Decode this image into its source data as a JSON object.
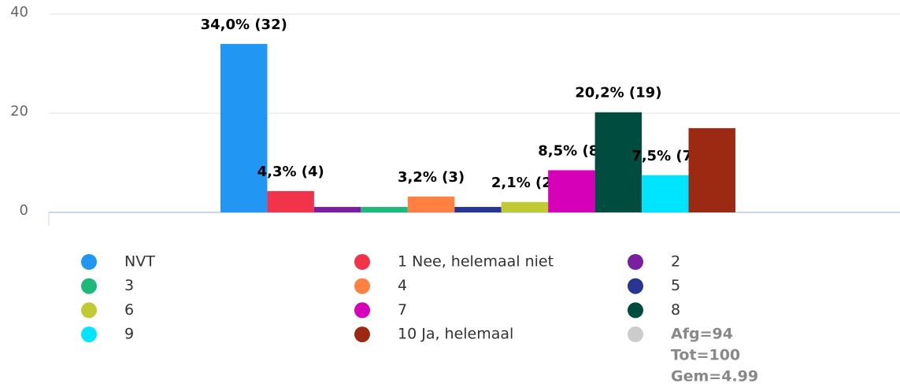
{
  "chart_data": {
    "type": "bar",
    "ylim": [
      0,
      40
    ],
    "yticks": [
      0,
      20,
      40
    ],
    "grid": true,
    "series": [
      {
        "name": "NVT",
        "color": "#2196f3",
        "values": [
          34.0
        ],
        "value_labels": [
          "34,0% (32)"
        ]
      },
      {
        "name": "1 Nee, helemaal niet",
        "color": "#f2344a",
        "values": [
          4.3
        ],
        "value_labels": [
          "4,3% (4)"
        ]
      },
      {
        "name": "2",
        "color": "#7b1fa2",
        "values": [
          1.1
        ],
        "value_labels": [
          null
        ]
      },
      {
        "name": "3",
        "color": "#1db87a",
        "values": [
          1.1
        ],
        "value_labels": [
          null
        ]
      },
      {
        "name": "4",
        "color": "#ff8040",
        "values": [
          3.2
        ],
        "value_labels": [
          "3,2% (3)"
        ]
      },
      {
        "name": "5",
        "color": "#283593",
        "values": [
          1.1
        ],
        "value_labels": [
          null
        ]
      },
      {
        "name": "6",
        "color": "#c0ca33",
        "values": [
          2.1
        ],
        "value_labels": [
          "2,1% (2)"
        ]
      },
      {
        "name": "7",
        "color": "#d500b8",
        "values": [
          8.5
        ],
        "value_labels": [
          "8,5% (8)"
        ]
      },
      {
        "name": "8",
        "color": "#004d40",
        "values": [
          20.2
        ],
        "value_labels": [
          "20,2% (19)"
        ]
      },
      {
        "name": "9",
        "color": "#00e5ff",
        "values": [
          7.5
        ],
        "value_labels": [
          "7,5% (7)"
        ]
      },
      {
        "name": "10 Ja, helemaal",
        "color": "#9c2a12",
        "values": [
          17.0
        ],
        "value_labels": [
          null
        ]
      }
    ],
    "stats": {
      "color": "#cccccc",
      "lines": [
        "Afg=94",
        "Tot=100",
        "Gem=4.99"
      ]
    }
  }
}
